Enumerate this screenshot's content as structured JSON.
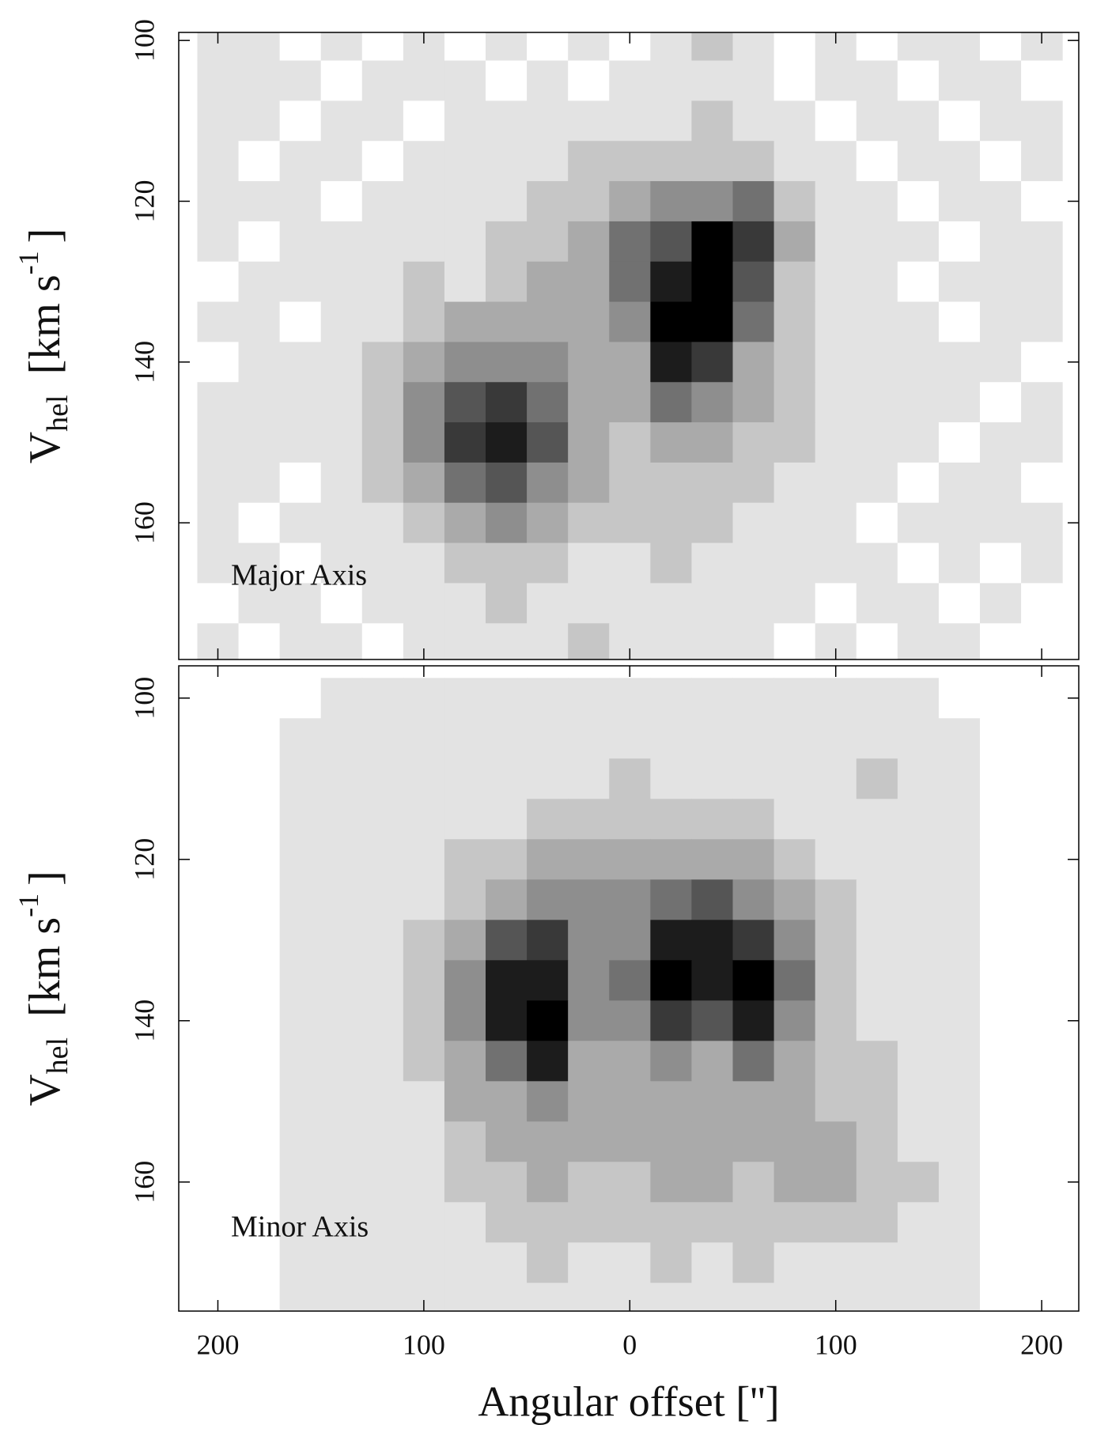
{
  "chart_data": [
    {
      "type": "heatmap",
      "annotation": "Major Axis",
      "ylabel": "V",
      "ylabel_sub": "hel",
      "ylabel_unit": "[km s",
      "ylabel_sup": "-1",
      "ylabel_end": "]",
      "x": [
        200,
        180,
        160,
        140,
        120,
        100,
        80,
        60,
        40,
        20,
        0,
        -20,
        -40,
        -60,
        -80,
        -100,
        -120,
        -140,
        -160,
        -180,
        -200
      ],
      "y": [
        100,
        105,
        110,
        115,
        120,
        125,
        130,
        135,
        140,
        145,
        150,
        155,
        160,
        165,
        170,
        175
      ],
      "z": [
        [
          1,
          1,
          0,
          1,
          0,
          1,
          0,
          1,
          0,
          1,
          0,
          1,
          2,
          1,
          0,
          1,
          0,
          1,
          1,
          0,
          1
        ],
        [
          1,
          1,
          1,
          0,
          1,
          1,
          1,
          0,
          1,
          0,
          1,
          1,
          1,
          1,
          0,
          1,
          1,
          0,
          1,
          1,
          0
        ],
        [
          1,
          1,
          0,
          1,
          1,
          0,
          1,
          1,
          1,
          1,
          1,
          1,
          2,
          1,
          1,
          0,
          1,
          1,
          0,
          1,
          1
        ],
        [
          1,
          0,
          1,
          1,
          0,
          1,
          1,
          1,
          1,
          2,
          2,
          2,
          2,
          2,
          1,
          1,
          0,
          1,
          1,
          0,
          1
        ],
        [
          1,
          1,
          1,
          0,
          1,
          1,
          1,
          1,
          2,
          2,
          3,
          4,
          4,
          5,
          2,
          1,
          1,
          0,
          1,
          1,
          0
        ],
        [
          1,
          0,
          1,
          1,
          1,
          1,
          1,
          2,
          2,
          3,
          5,
          6,
          9,
          7,
          3,
          1,
          1,
          1,
          0,
          1,
          1
        ],
        [
          0,
          1,
          1,
          1,
          1,
          2,
          1,
          2,
          3,
          3,
          5,
          8,
          9,
          6,
          2,
          1,
          1,
          0,
          1,
          1,
          1
        ],
        [
          1,
          1,
          0,
          1,
          1,
          2,
          3,
          3,
          3,
          3,
          4,
          9,
          9,
          5,
          2,
          1,
          1,
          1,
          0,
          1,
          1
        ],
        [
          0,
          1,
          1,
          1,
          2,
          3,
          4,
          4,
          4,
          3,
          3,
          8,
          7,
          3,
          2,
          1,
          1,
          1,
          1,
          1,
          0
        ],
        [
          1,
          1,
          1,
          1,
          2,
          4,
          6,
          7,
          5,
          3,
          3,
          5,
          4,
          3,
          2,
          1,
          1,
          1,
          1,
          0,
          1
        ],
        [
          1,
          1,
          1,
          1,
          2,
          4,
          7,
          8,
          6,
          3,
          2,
          3,
          3,
          2,
          2,
          1,
          1,
          1,
          0,
          1,
          1
        ],
        [
          1,
          1,
          0,
          1,
          2,
          3,
          5,
          6,
          4,
          3,
          2,
          2,
          2,
          2,
          1,
          1,
          1,
          0,
          1,
          1,
          0
        ],
        [
          1,
          0,
          1,
          1,
          1,
          2,
          3,
          4,
          3,
          2,
          2,
          2,
          2,
          1,
          1,
          1,
          0,
          1,
          1,
          1,
          1
        ],
        [
          1,
          1,
          0,
          1,
          1,
          1,
          2,
          2,
          2,
          1,
          1,
          2,
          1,
          1,
          1,
          1,
          1,
          0,
          1,
          0,
          1
        ],
        [
          0,
          1,
          1,
          0,
          1,
          1,
          1,
          2,
          1,
          1,
          1,
          1,
          1,
          1,
          1,
          0,
          1,
          1,
          0,
          1,
          0
        ],
        [
          1,
          0,
          1,
          1,
          0,
          1,
          1,
          1,
          1,
          2,
          1,
          1,
          1,
          1,
          0,
          1,
          0,
          1,
          1,
          0,
          0
        ]
      ],
      "zlim": [
        0,
        9
      ],
      "xlim": [
        219,
        -218
      ],
      "ylim": [
        99,
        177
      ],
      "xticks": [
        200,
        100,
        0,
        -100,
        -200
      ],
      "yticks": [
        100,
        120,
        140,
        160
      ]
    },
    {
      "type": "heatmap",
      "annotation": "Minor Axis",
      "ylabel": "V",
      "ylabel_sub": "hel",
      "ylabel_unit": "[km s",
      "ylabel_sup": "-1",
      "ylabel_end": "]",
      "xlabel": "Angular offset ['']",
      "x": [
        200,
        180,
        160,
        140,
        120,
        100,
        80,
        60,
        40,
        20,
        0,
        -20,
        -40,
        -60,
        -80,
        -100,
        -120,
        -140,
        -160,
        -180,
        -200
      ],
      "y": [
        100,
        105,
        110,
        115,
        120,
        125,
        130,
        135,
        140,
        145,
        150,
        155,
        160,
        165,
        170,
        175
      ],
      "z": [
        [
          0,
          0,
          0,
          1,
          1,
          1,
          1,
          1,
          1,
          1,
          1,
          1,
          1,
          1,
          1,
          1,
          1,
          1,
          0,
          0,
          0
        ],
        [
          0,
          0,
          1,
          1,
          1,
          1,
          1,
          1,
          1,
          1,
          1,
          1,
          1,
          1,
          1,
          1,
          1,
          1,
          1,
          0,
          0
        ],
        [
          0,
          0,
          1,
          1,
          1,
          1,
          1,
          1,
          1,
          1,
          2,
          1,
          1,
          1,
          1,
          1,
          2,
          1,
          1,
          0,
          0
        ],
        [
          0,
          0,
          1,
          1,
          1,
          1,
          1,
          1,
          2,
          2,
          2,
          2,
          2,
          2,
          1,
          1,
          1,
          1,
          1,
          0,
          0
        ],
        [
          0,
          0,
          1,
          1,
          1,
          1,
          2,
          2,
          3,
          3,
          3,
          3,
          3,
          3,
          2,
          1,
          1,
          1,
          1,
          0,
          0
        ],
        [
          0,
          0,
          1,
          1,
          1,
          1,
          2,
          3,
          4,
          4,
          4,
          5,
          6,
          4,
          3,
          2,
          1,
          1,
          1,
          0,
          0
        ],
        [
          0,
          0,
          1,
          1,
          1,
          2,
          3,
          6,
          7,
          4,
          4,
          8,
          8,
          7,
          4,
          2,
          1,
          1,
          1,
          0,
          0
        ],
        [
          0,
          0,
          1,
          1,
          1,
          2,
          4,
          8,
          8,
          4,
          5,
          9,
          8,
          9,
          5,
          2,
          1,
          1,
          1,
          0,
          0
        ],
        [
          0,
          0,
          1,
          1,
          1,
          2,
          4,
          8,
          9,
          4,
          4,
          7,
          6,
          8,
          4,
          2,
          1,
          1,
          1,
          0,
          0
        ],
        [
          0,
          0,
          1,
          1,
          1,
          2,
          3,
          5,
          8,
          3,
          3,
          4,
          3,
          5,
          3,
          2,
          2,
          1,
          1,
          0,
          0
        ],
        [
          0,
          0,
          1,
          1,
          1,
          1,
          3,
          3,
          4,
          3,
          3,
          3,
          3,
          3,
          3,
          2,
          2,
          1,
          1,
          0,
          0
        ],
        [
          0,
          0,
          1,
          1,
          1,
          1,
          2,
          3,
          3,
          3,
          3,
          3,
          3,
          3,
          3,
          3,
          2,
          1,
          1,
          0,
          0
        ],
        [
          0,
          0,
          1,
          1,
          1,
          1,
          2,
          2,
          3,
          2,
          2,
          3,
          3,
          2,
          3,
          3,
          2,
          2,
          1,
          0,
          0
        ],
        [
          0,
          0,
          1,
          1,
          1,
          1,
          1,
          2,
          2,
          2,
          2,
          2,
          2,
          2,
          2,
          2,
          2,
          1,
          1,
          0,
          0
        ],
        [
          0,
          0,
          1,
          1,
          1,
          1,
          1,
          1,
          2,
          1,
          1,
          2,
          1,
          2,
          1,
          1,
          1,
          1,
          1,
          0,
          0
        ],
        [
          0,
          0,
          1,
          1,
          1,
          1,
          1,
          1,
          1,
          1,
          1,
          1,
          1,
          1,
          1,
          1,
          1,
          1,
          1,
          0,
          0
        ]
      ],
      "zlim": [
        0,
        9
      ],
      "xlim": [
        219,
        -218
      ],
      "ylim": [
        96,
        176
      ],
      "xticks": [
        200,
        100,
        0,
        {
          "value": -100,
          "label": "100"
        },
        {
          "value": -200,
          "label": "200"
        }
      ],
      "yticks": [
        100,
        120,
        140,
        160
      ]
    }
  ]
}
